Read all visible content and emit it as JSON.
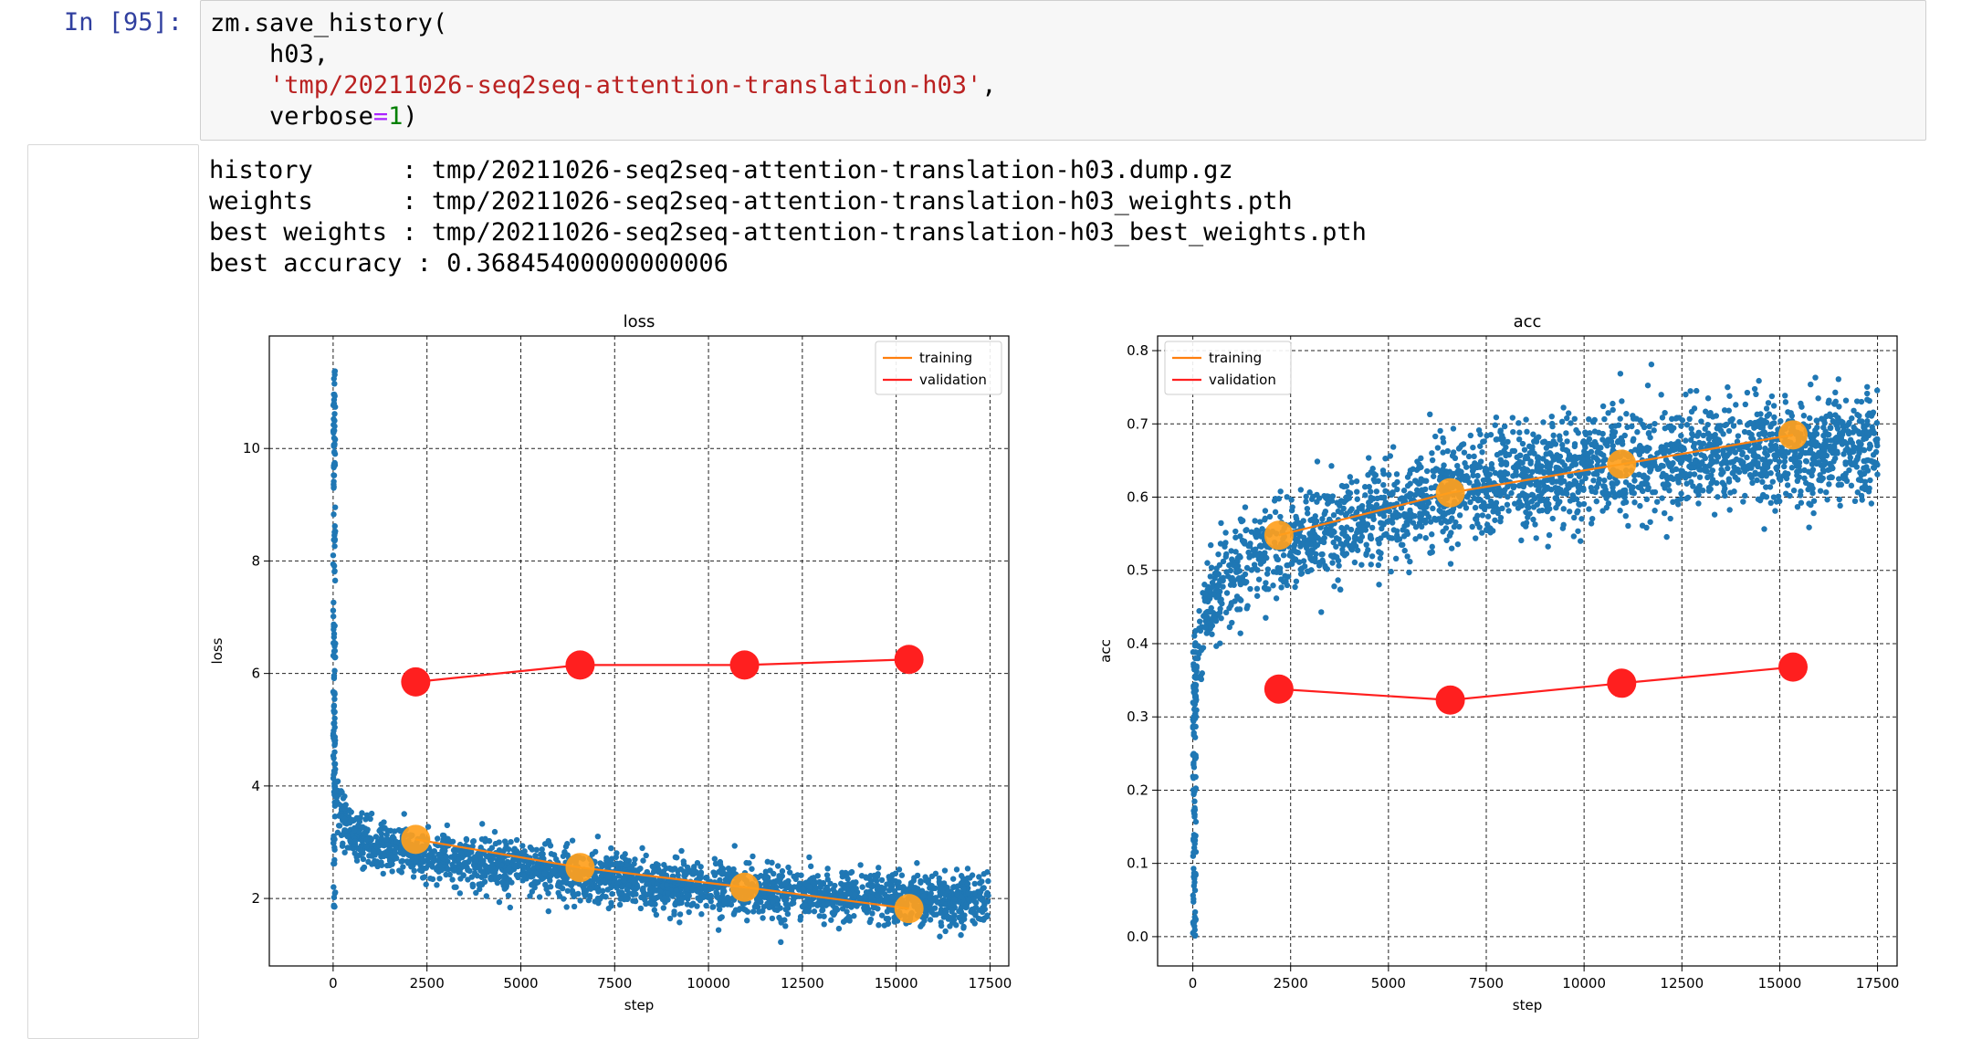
{
  "cell": {
    "prompt": "In [95]:",
    "code": {
      "line1": "zm.save_history(",
      "line2_indent": "    ",
      "line2": "h03,",
      "line3_indent": "    ",
      "line3_string": "'tmp/20211026-seq2seq-attention-translation-h03'",
      "line3_comma": ",",
      "line4_indent": "    ",
      "line4_kw": "verbose",
      "line4_eq": "=",
      "line4_num": "1",
      "line4_close": ")"
    }
  },
  "output": {
    "lines": [
      "history      : tmp/20211026-seq2seq-attention-translation-h03.dump.gz",
      "weights      : tmp/20211026-seq2seq-attention-translation-h03_weights.pth",
      "best weights : tmp/20211026-seq2seq-attention-translation-h03_best_weights.pth",
      "best accuracy : 0.36845400000000006"
    ]
  },
  "colors": {
    "scatter": "#1f77b4",
    "training": "#ff9f1c",
    "training_line": "#ff7f0e",
    "validation": "#ff1f1f",
    "prompt": "#303f9f",
    "string": "#ba2121"
  },
  "chart_data": [
    {
      "type": "line",
      "title": "loss",
      "xlabel": "step",
      "ylabel": "loss",
      "xlim": [
        -1700,
        18000
      ],
      "ylim": [
        0.8,
        12.0
      ],
      "xticks": [
        0,
        2500,
        5000,
        7500,
        10000,
        12500,
        15000,
        17500
      ],
      "yticks": [
        2,
        4,
        6,
        8,
        10
      ],
      "grid": true,
      "legend": "top-right",
      "series": [
        {
          "name": "training",
          "x": [
            2200,
            6580,
            10960,
            15340
          ],
          "y": [
            3.05,
            2.55,
            2.2,
            1.82
          ]
        },
        {
          "name": "validation",
          "x": [
            2200,
            6580,
            10960,
            15340
          ],
          "y": [
            5.85,
            6.15,
            6.15,
            6.25
          ]
        }
      ],
      "scatter": {
        "description": "per-step training points",
        "x_range": [
          0,
          17500
        ],
        "y_start": 11.4,
        "y_end": 1.7
      }
    },
    {
      "type": "line",
      "title": "acc",
      "xlabel": "step",
      "ylabel": "acc",
      "xlim": [
        -900,
        18000
      ],
      "ylim": [
        -0.04,
        0.82
      ],
      "xticks": [
        0,
        2500,
        5000,
        7500,
        10000,
        12500,
        15000,
        17500
      ],
      "yticks": [
        0.0,
        0.1,
        0.2,
        0.3,
        0.4,
        0.5,
        0.6,
        0.7,
        0.8
      ],
      "grid": true,
      "legend": "top-left",
      "series": [
        {
          "name": "training",
          "x": [
            2200,
            6580,
            10960,
            15340
          ],
          "y": [
            0.548,
            0.606,
            0.645,
            0.685
          ]
        },
        {
          "name": "validation",
          "x": [
            2200,
            6580,
            10960,
            15340
          ],
          "y": [
            0.338,
            0.323,
            0.346,
            0.368
          ]
        }
      ],
      "scatter": {
        "description": "per-step training points",
        "x_range": [
          0,
          17500
        ],
        "y_start": 0.0,
        "y_end": 0.69
      }
    }
  ]
}
